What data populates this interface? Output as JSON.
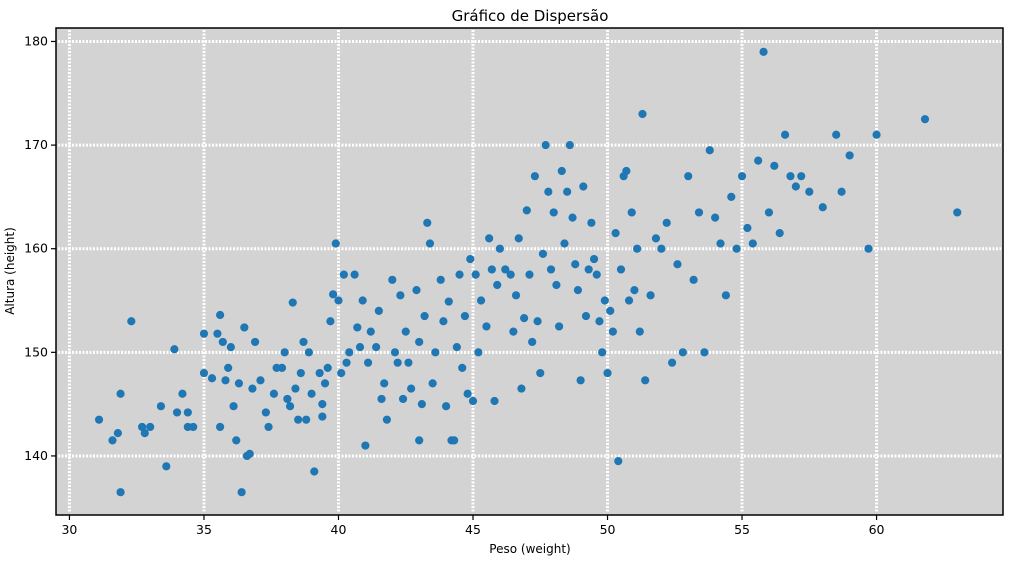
{
  "chart_data": {
    "type": "scatter",
    "title": "Gráfico de Dispersão",
    "xlabel": "Peso (weight)",
    "ylabel": "Altura (height)",
    "xlim": [
      29.5,
      64.7
    ],
    "ylim": [
      134.3,
      181.3
    ],
    "xticks": [
      30,
      35,
      40,
      45,
      50,
      55,
      60
    ],
    "yticks": [
      140,
      150,
      160,
      170,
      180
    ],
    "grid": true,
    "points": [
      [
        31.1,
        143.5
      ],
      [
        31.6,
        141.5
      ],
      [
        31.8,
        142.2
      ],
      [
        31.9,
        146.0
      ],
      [
        31.9,
        136.5
      ],
      [
        32.3,
        153.0
      ],
      [
        32.7,
        142.8
      ],
      [
        32.8,
        142.2
      ],
      [
        33.0,
        142.8
      ],
      [
        33.4,
        144.8
      ],
      [
        33.6,
        139.0
      ],
      [
        33.9,
        150.3
      ],
      [
        34.0,
        144.2
      ],
      [
        34.2,
        146.0
      ],
      [
        34.4,
        144.2
      ],
      [
        34.4,
        142.8
      ],
      [
        34.6,
        142.8
      ],
      [
        35.0,
        151.8
      ],
      [
        35.0,
        148.0
      ],
      [
        35.3,
        147.5
      ],
      [
        35.5,
        151.8
      ],
      [
        35.6,
        153.6
      ],
      [
        35.6,
        142.8
      ],
      [
        35.7,
        151.0
      ],
      [
        35.8,
        147.3
      ],
      [
        35.9,
        148.5
      ],
      [
        36.0,
        150.5
      ],
      [
        36.1,
        144.8
      ],
      [
        36.3,
        147.0
      ],
      [
        36.2,
        141.5
      ],
      [
        36.4,
        136.5
      ],
      [
        36.5,
        152.4
      ],
      [
        36.6,
        140.0
      ],
      [
        36.7,
        140.2
      ],
      [
        36.8,
        146.5
      ],
      [
        36.9,
        151.0
      ],
      [
        37.1,
        147.3
      ],
      [
        37.3,
        144.2
      ],
      [
        37.4,
        142.8
      ],
      [
        37.6,
        146.0
      ],
      [
        37.7,
        148.5
      ],
      [
        37.9,
        148.5
      ],
      [
        38.0,
        150.0
      ],
      [
        38.1,
        145.5
      ],
      [
        38.2,
        144.8
      ],
      [
        38.3,
        154.8
      ],
      [
        38.4,
        146.5
      ],
      [
        38.5,
        143.5
      ],
      [
        38.6,
        148.0
      ],
      [
        38.7,
        151.0
      ],
      [
        38.8,
        143.5
      ],
      [
        38.9,
        150.0
      ],
      [
        39.0,
        146.0
      ],
      [
        39.1,
        138.5
      ],
      [
        39.3,
        148.0
      ],
      [
        39.4,
        145.0
      ],
      [
        39.4,
        143.8
      ],
      [
        39.5,
        147.0
      ],
      [
        39.6,
        148.5
      ],
      [
        39.7,
        153.0
      ],
      [
        39.8,
        155.6
      ],
      [
        39.9,
        160.5
      ],
      [
        40.0,
        155.0
      ],
      [
        40.1,
        148.0
      ],
      [
        40.2,
        157.5
      ],
      [
        40.3,
        149.0
      ],
      [
        40.4,
        150.0
      ],
      [
        40.6,
        157.5
      ],
      [
        40.7,
        152.4
      ],
      [
        40.8,
        150.5
      ],
      [
        40.9,
        155.0
      ],
      [
        41.0,
        141.0
      ],
      [
        41.1,
        149.0
      ],
      [
        41.2,
        152.0
      ],
      [
        41.4,
        150.5
      ],
      [
        41.5,
        154.0
      ],
      [
        41.6,
        145.5
      ],
      [
        41.7,
        147.0
      ],
      [
        41.8,
        143.5
      ],
      [
        42.0,
        157.0
      ],
      [
        42.1,
        150.0
      ],
      [
        42.2,
        149.0
      ],
      [
        42.3,
        155.5
      ],
      [
        42.4,
        145.5
      ],
      [
        42.5,
        152.0
      ],
      [
        42.6,
        149.0
      ],
      [
        42.7,
        146.5
      ],
      [
        42.9,
        156.0
      ],
      [
        43.0,
        141.5
      ],
      [
        43.0,
        151.0
      ],
      [
        43.1,
        145.0
      ],
      [
        43.2,
        153.5
      ],
      [
        43.3,
        162.5
      ],
      [
        43.4,
        160.5
      ],
      [
        43.5,
        147.0
      ],
      [
        43.6,
        150.0
      ],
      [
        43.8,
        157.0
      ],
      [
        43.9,
        153.0
      ],
      [
        44.0,
        144.8
      ],
      [
        44.1,
        154.9
      ],
      [
        44.2,
        141.5
      ],
      [
        44.3,
        141.5
      ],
      [
        44.4,
        150.5
      ],
      [
        44.5,
        157.5
      ],
      [
        44.6,
        148.5
      ],
      [
        44.7,
        153.5
      ],
      [
        44.8,
        146.0
      ],
      [
        44.9,
        159.0
      ],
      [
        45.0,
        145.3
      ],
      [
        45.1,
        157.5
      ],
      [
        45.2,
        150.0
      ],
      [
        45.3,
        155.0
      ],
      [
        45.5,
        152.5
      ],
      [
        45.6,
        161.0
      ],
      [
        45.7,
        158.0
      ],
      [
        45.8,
        145.3
      ],
      [
        45.9,
        156.5
      ],
      [
        46.0,
        160.0
      ],
      [
        46.2,
        158.0
      ],
      [
        46.4,
        157.5
      ],
      [
        46.5,
        152.0
      ],
      [
        46.6,
        155.5
      ],
      [
        46.7,
        161.0
      ],
      [
        46.8,
        146.5
      ],
      [
        46.9,
        153.3
      ],
      [
        47.0,
        163.7
      ],
      [
        47.1,
        157.5
      ],
      [
        47.2,
        151.0
      ],
      [
        47.3,
        167.0
      ],
      [
        47.4,
        153.0
      ],
      [
        47.5,
        148.0
      ],
      [
        47.6,
        159.5
      ],
      [
        47.7,
        170.0
      ],
      [
        47.8,
        165.5
      ],
      [
        47.9,
        158.0
      ],
      [
        48.0,
        163.5
      ],
      [
        48.1,
        156.5
      ],
      [
        48.2,
        152.5
      ],
      [
        48.3,
        167.5
      ],
      [
        48.4,
        160.5
      ],
      [
        48.5,
        165.5
      ],
      [
        48.6,
        170.0
      ],
      [
        48.7,
        163.0
      ],
      [
        48.8,
        158.5
      ],
      [
        48.9,
        156.0
      ],
      [
        49.0,
        147.3
      ],
      [
        49.1,
        166.0
      ],
      [
        49.2,
        153.5
      ],
      [
        49.3,
        158.0
      ],
      [
        49.4,
        162.5
      ],
      [
        49.5,
        159.0
      ],
      [
        49.6,
        157.5
      ],
      [
        49.7,
        153.0
      ],
      [
        49.8,
        150.0
      ],
      [
        49.9,
        155.0
      ],
      [
        50.0,
        148.0
      ],
      [
        50.1,
        154.0
      ],
      [
        50.2,
        152.0
      ],
      [
        50.3,
        161.5
      ],
      [
        50.4,
        139.5
      ],
      [
        50.5,
        158.0
      ],
      [
        50.6,
        167.0
      ],
      [
        50.7,
        167.5
      ],
      [
        50.8,
        155.0
      ],
      [
        50.9,
        163.5
      ],
      [
        51.0,
        156.0
      ],
      [
        51.1,
        160.0
      ],
      [
        51.2,
        152.0
      ],
      [
        51.3,
        173.0
      ],
      [
        51.4,
        147.3
      ],
      [
        51.6,
        155.5
      ],
      [
        51.8,
        161.0
      ],
      [
        52.0,
        160.0
      ],
      [
        52.2,
        162.5
      ],
      [
        52.4,
        149.0
      ],
      [
        52.6,
        158.5
      ],
      [
        52.8,
        150.0
      ],
      [
        53.0,
        167.0
      ],
      [
        53.2,
        157.0
      ],
      [
        53.4,
        163.5
      ],
      [
        53.6,
        150.0
      ],
      [
        53.8,
        169.5
      ],
      [
        54.0,
        163.0
      ],
      [
        54.2,
        160.5
      ],
      [
        54.4,
        155.5
      ],
      [
        54.6,
        165.0
      ],
      [
        54.8,
        160.0
      ],
      [
        55.0,
        167.0
      ],
      [
        55.2,
        162.0
      ],
      [
        55.4,
        160.5
      ],
      [
        55.6,
        168.5
      ],
      [
        55.8,
        179.0
      ],
      [
        56.0,
        163.5
      ],
      [
        56.2,
        168.0
      ],
      [
        56.4,
        161.5
      ],
      [
        56.6,
        171.0
      ],
      [
        56.8,
        167.0
      ],
      [
        57.0,
        166.0
      ],
      [
        57.2,
        167.0
      ],
      [
        57.5,
        165.5
      ],
      [
        58.0,
        164.0
      ],
      [
        58.5,
        171.0
      ],
      [
        58.7,
        165.5
      ],
      [
        59.0,
        169.0
      ],
      [
        59.7,
        160.0
      ],
      [
        60.0,
        171.0
      ],
      [
        61.8,
        172.5
      ],
      [
        63.0,
        163.5
      ]
    ]
  }
}
